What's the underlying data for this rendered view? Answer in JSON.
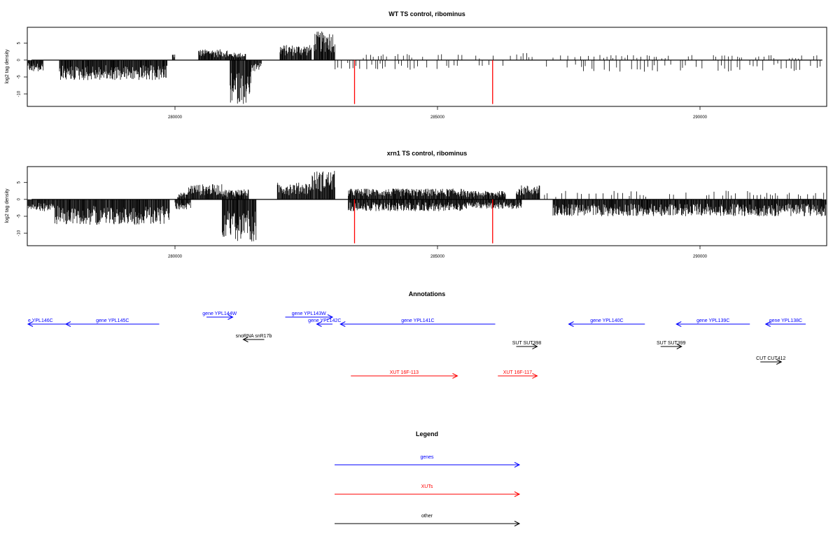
{
  "chart_data": [
    {
      "type": "bar",
      "title": "WT TS control, ribominus",
      "ylabel": "log2 tag density",
      "xlim": [
        277200,
        292400
      ],
      "ylim": [
        -13.5,
        9.5
      ],
      "yticks": [
        -10,
        -5,
        0,
        5
      ],
      "xticks": [
        280000,
        285000,
        290000
      ],
      "marker_color": "#ff0000",
      "markers": [
        {
          "x": 283420,
          "y": -13
        },
        {
          "x": 286050,
          "y": -13
        }
      ],
      "plus_segments": [
        {
          "start": 279950,
          "end": 280000,
          "max": 2.0
        },
        {
          "start": 280450,
          "end": 281000,
          "max": 3.2
        },
        {
          "start": 281000,
          "end": 281350,
          "max": 2.2
        },
        {
          "start": 282000,
          "end": 282600,
          "max": 4.5
        },
        {
          "start": 282650,
          "end": 283050,
          "max": 8.5
        },
        {
          "start": 283500,
          "end": 286200,
          "max": 1.8,
          "sparse": true
        },
        {
          "start": 286200,
          "end": 286900,
          "max": 2.3,
          "sparse": true
        },
        {
          "start": 287200,
          "end": 292400,
          "max": 1.5,
          "sparse": true
        }
      ],
      "minus_segments": [
        {
          "start": 277200,
          "end": 277500,
          "min": -3.5
        },
        {
          "start": 277800,
          "end": 279850,
          "min": -6.0
        },
        {
          "start": 281050,
          "end": 281450,
          "min": -13.0
        },
        {
          "start": 281450,
          "end": 281650,
          "min": -3.5
        },
        {
          "start": 283050,
          "end": 286300,
          "min": -3.0,
          "sparse": true
        },
        {
          "start": 287000,
          "end": 292400,
          "min": -3.5,
          "sparse": true
        }
      ]
    },
    {
      "type": "bar",
      "title": "xrn1 TS control, ribominus",
      "ylabel": "log2 tag density",
      "xlim": [
        277200,
        292400
      ],
      "ylim": [
        -13.5,
        9.5
      ],
      "yticks": [
        -10,
        -5,
        0,
        5
      ],
      "xticks": [
        280000,
        285000,
        290000
      ],
      "marker_color": "#ff0000",
      "markers": [
        {
          "x": 283420,
          "y": -13
        },
        {
          "x": 286050,
          "y": -13
        }
      ],
      "plus_segments": [
        {
          "start": 280050,
          "end": 280250,
          "max": 2.0
        },
        {
          "start": 280250,
          "end": 280900,
          "max": 4.5
        },
        {
          "start": 280900,
          "end": 281400,
          "max": 3.0
        },
        {
          "start": 281950,
          "end": 282600,
          "max": 5.0
        },
        {
          "start": 282600,
          "end": 283050,
          "max": 8.5
        },
        {
          "start": 283300,
          "end": 285500,
          "max": 3.2
        },
        {
          "start": 285500,
          "end": 286300,
          "max": 2.5
        },
        {
          "start": 286500,
          "end": 286950,
          "max": 4.2
        },
        {
          "start": 287000,
          "end": 292400,
          "max": 2.6,
          "sparse": true
        }
      ],
      "minus_segments": [
        {
          "start": 277200,
          "end": 277700,
          "min": -3.5
        },
        {
          "start": 277700,
          "end": 279900,
          "min": -7.5
        },
        {
          "start": 280000,
          "end": 280300,
          "min": -3.0
        },
        {
          "start": 280900,
          "end": 281550,
          "min": -12.5
        },
        {
          "start": 283300,
          "end": 285500,
          "min": -3.5
        },
        {
          "start": 285500,
          "end": 286600,
          "min": -2.8
        },
        {
          "start": 287200,
          "end": 288800,
          "min": -5.0
        },
        {
          "start": 288800,
          "end": 292400,
          "min": -5.0
        }
      ]
    }
  ],
  "annotations": {
    "title": "Annotations",
    "features": [
      {
        "label": "e YPL146C",
        "start": 277200,
        "end": 278080,
        "strand": "-",
        "row": 0,
        "class": "gene"
      },
      {
        "label": "gene YPL145C",
        "start": 277920,
        "end": 279700,
        "strand": "-",
        "row": 0,
        "class": "gene"
      },
      {
        "label": "gene YPL144W",
        "start": 280600,
        "end": 281100,
        "strand": "+",
        "row": -1,
        "class": "gene"
      },
      {
        "label": "gene YPL143W",
        "start": 282100,
        "end": 283000,
        "strand": "+",
        "row": -1,
        "class": "gene"
      },
      {
        "label": "gene YPL142C",
        "start": 282700,
        "end": 283000,
        "strand": "-",
        "row": 0,
        "class": "gene"
      },
      {
        "label": "gene YPL141C",
        "start": 283150,
        "end": 286100,
        "strand": "-",
        "row": 0,
        "class": "gene"
      },
      {
        "label": "gene YPL140C",
        "start": 287500,
        "end": 288950,
        "strand": "-",
        "row": 0,
        "class": "gene"
      },
      {
        "label": "gene YPL139C",
        "start": 289550,
        "end": 290950,
        "strand": "-",
        "row": 0,
        "class": "gene"
      },
      {
        "label": "gene YPL138C",
        "start": 291250,
        "end": 292400,
        "strand": "-",
        "row": 0,
        "class": "gene"
      },
      {
        "label": "snoRNA snR17b",
        "start": 281300,
        "end": 281700,
        "strand": "-",
        "row": 1,
        "class": "other"
      },
      {
        "label": "SUT SUT398",
        "start": 286500,
        "end": 286900,
        "strand": "+",
        "row": 2,
        "class": "other"
      },
      {
        "label": "SUT SUT399",
        "start": 289250,
        "end": 289650,
        "strand": "+",
        "row": 2,
        "class": "other"
      },
      {
        "label": "CUT CUT412",
        "start": 291150,
        "end": 291550,
        "strand": "+",
        "row": 3,
        "class": "other"
      },
      {
        "label": "XUT 16F-113",
        "start": 283350,
        "end": 285380,
        "strand": "+",
        "row": 4,
        "class": "xut"
      },
      {
        "label": "XUT 16F-117",
        "start": 286150,
        "end": 286900,
        "strand": "+",
        "row": 4,
        "class": "xut"
      }
    ]
  },
  "legend": {
    "title": "Legend",
    "items": [
      {
        "label": "genes",
        "color": "#0000ff"
      },
      {
        "label": "XUTs",
        "color": "#ff0000"
      },
      {
        "label": "other",
        "color": "#000000"
      }
    ]
  }
}
